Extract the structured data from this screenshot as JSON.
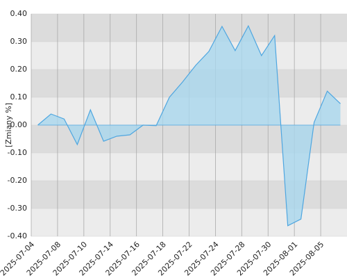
{
  "chart_data": {
    "type": "area",
    "y_label": "[Zmiany %]",
    "categories": [
      "2025-07-04",
      null,
      "2025-07-08",
      null,
      "2025-07-10",
      null,
      "2025-07-14",
      null,
      "2025-07-16",
      null,
      "2025-07-18",
      null,
      "2025-07-22",
      null,
      "2025-07-24",
      null,
      "2025-07-28",
      null,
      "2025-07-30",
      null,
      "2025-08-01",
      null,
      "2025-08-05",
      null
    ],
    "values": [
      0.0,
      0.04,
      0.022,
      -0.07,
      0.055,
      -0.058,
      -0.04,
      -0.035,
      0.0,
      -0.002,
      0.1,
      0.155,
      0.215,
      0.265,
      0.355,
      0.268,
      0.357,
      0.25,
      0.322,
      -0.362,
      -0.338,
      0.01,
      0.122,
      0.077
    ],
    "color": "#4ea6e0",
    "ylim": [
      -0.4,
      0.4
    ],
    "yticks": [
      {
        "value": 0.4,
        "label": "0.40"
      },
      {
        "value": 0.3,
        "label": "0.30"
      },
      {
        "value": 0.2,
        "label": "0.20"
      },
      {
        "value": 0.1,
        "label": "0.10"
      },
      {
        "value": 0,
        "label": "0.00"
      },
      {
        "value": -0.1,
        "label": "-0.10"
      },
      {
        "value": -0.2,
        "label": "-0.20"
      },
      {
        "value": -0.3,
        "label": "-0.30"
      },
      {
        "value": -0.4,
        "label": "-0.40"
      }
    ],
    "grid": true
  }
}
